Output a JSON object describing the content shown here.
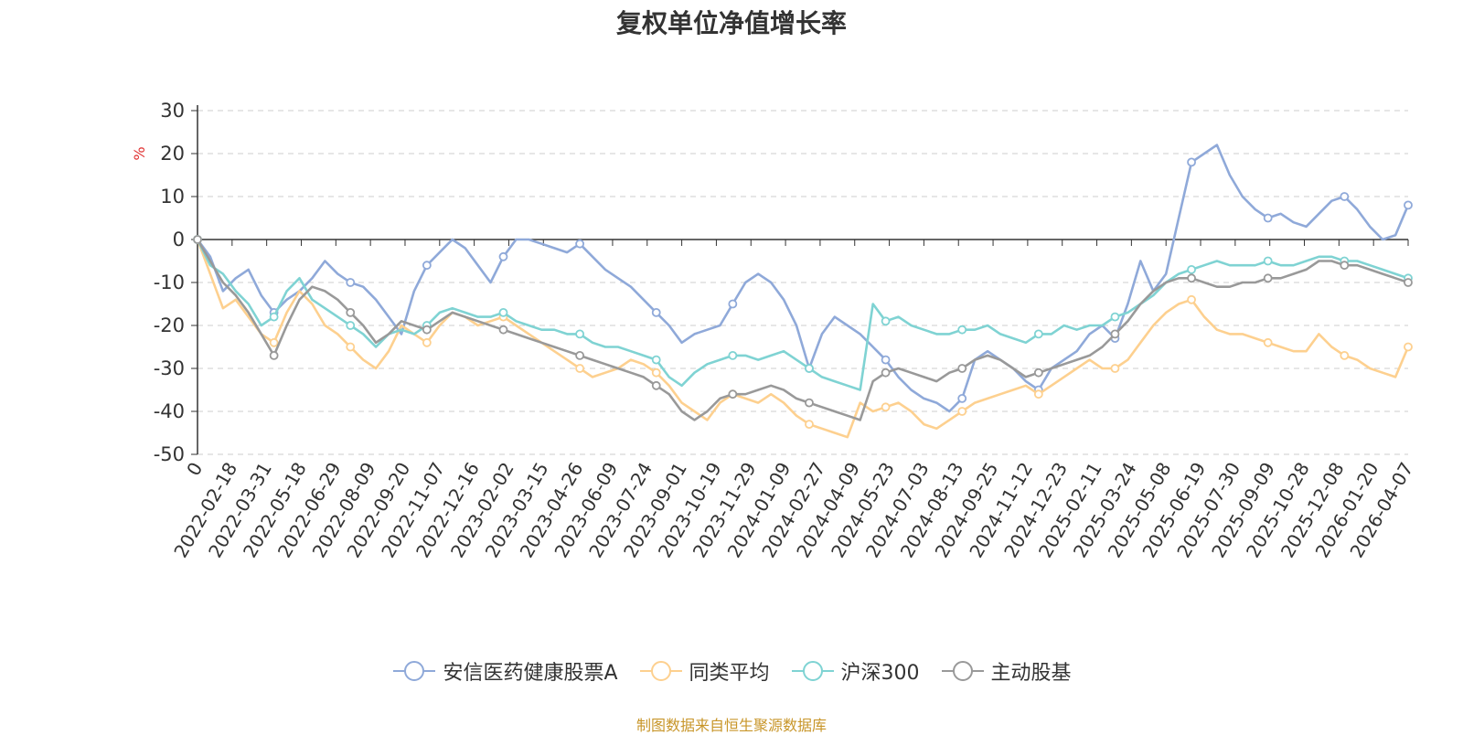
{
  "chart_data": {
    "type": "line",
    "title": "复权单位净值增长率",
    "ylabel": "%",
    "ylim": [
      -50,
      30
    ],
    "yticks": [
      30,
      20,
      10,
      0,
      -10,
      -20,
      -30,
      -40,
      -50
    ],
    "xticks": [
      "0",
      "2022-02-18",
      "2022-03-31",
      "2022-05-18",
      "2022-06-29",
      "2022-08-09",
      "2022-09-20",
      "2022-11-07",
      "2022-12-16",
      "2023-02-02",
      "2023-03-15",
      "2023-04-26",
      "2023-06-09",
      "2023-07-24",
      "2023-09-01",
      "2023-10-19",
      "2023-11-29",
      "2024-01-09",
      "2024-02-27",
      "2024-04-09",
      "2024-05-23",
      "2024-07-03",
      "2024-08-13",
      "2024-09-25",
      "2024-11-12",
      "2024-12-23",
      "2025-02-11",
      "2025-03-24",
      "2025-05-08",
      "2025-06-19",
      "2025-07-30",
      "2025-09-09",
      "2025-10-28",
      "2025-12-08",
      "2026-01-20",
      "2026-04-07"
    ],
    "legend_position": "bottom",
    "grid": true,
    "series": [
      {
        "name": "安信医药健康股票A",
        "color": "#8fa9d9",
        "values": [
          0,
          -4,
          -12,
          -9,
          -7,
          -13,
          -17,
          -14,
          -12,
          -9,
          -5,
          -8,
          -10,
          -11,
          -14,
          -18,
          -22,
          -12,
          -6,
          -3,
          0,
          -2,
          -6,
          -10,
          -4,
          0,
          0,
          -1,
          -2,
          -3,
          -1,
          -4,
          -7,
          -9,
          -11,
          -14,
          -17,
          -20,
          -24,
          -22,
          -21,
          -20,
          -15,
          -10,
          -8,
          -10,
          -14,
          -20,
          -30,
          -22,
          -18,
          -20,
          -22,
          -25,
          -28,
          -32,
          -35,
          -37,
          -38,
          -40,
          -37,
          -28,
          -26,
          -28,
          -30,
          -33,
          -35,
          -30,
          -28,
          -26,
          -22,
          -20,
          -23,
          -15,
          -5,
          -12,
          -8,
          5,
          18,
          20,
          22,
          15,
          10,
          7,
          5,
          6,
          4,
          3,
          6,
          9,
          10,
          7,
          3,
          0,
          1,
          8
        ]
      },
      {
        "name": "同类平均",
        "color": "#fdd08f",
        "values": [
          0,
          -8,
          -16,
          -14,
          -18,
          -22,
          -24,
          -17,
          -12,
          -15,
          -20,
          -22,
          -25,
          -28,
          -30,
          -26,
          -20,
          -22,
          -24,
          -20,
          -17,
          -18,
          -20,
          -19,
          -18,
          -20,
          -22,
          -24,
          -26,
          -28,
          -30,
          -32,
          -31,
          -30,
          -28,
          -29,
          -31,
          -34,
          -38,
          -40,
          -42,
          -38,
          -36,
          -37,
          -38,
          -36,
          -38,
          -41,
          -43,
          -44,
          -45,
          -46,
          -38,
          -40,
          -39,
          -38,
          -40,
          -43,
          -44,
          -42,
          -40,
          -38,
          -37,
          -36,
          -35,
          -34,
          -36,
          -34,
          -32,
          -30,
          -28,
          -30,
          -30,
          -28,
          -24,
          -20,
          -17,
          -15,
          -14,
          -18,
          -21,
          -22,
          -22,
          -23,
          -24,
          -25,
          -26,
          -26,
          -22,
          -25,
          -27,
          -28,
          -30,
          -31,
          -32,
          -25
        ]
      },
      {
        "name": "沪深300",
        "color": "#7fd3d3",
        "values": [
          0,
          -6,
          -8,
          -12,
          -15,
          -20,
          -18,
          -12,
          -9,
          -14,
          -16,
          -18,
          -20,
          -22,
          -25,
          -22,
          -21,
          -22,
          -20,
          -17,
          -16,
          -17,
          -18,
          -18,
          -17,
          -19,
          -20,
          -21,
          -21,
          -22,
          -22,
          -24,
          -25,
          -25,
          -26,
          -27,
          -28,
          -32,
          -34,
          -31,
          -29,
          -28,
          -27,
          -27,
          -28,
          -27,
          -26,
          -28,
          -30,
          -32,
          -33,
          -34,
          -35,
          -15,
          -19,
          -18,
          -20,
          -21,
          -22,
          -22,
          -21,
          -21,
          -20,
          -22,
          -23,
          -24,
          -22,
          -22,
          -20,
          -21,
          -20,
          -20,
          -18,
          -17,
          -15,
          -13,
          -10,
          -8,
          -7,
          -6,
          -5,
          -6,
          -6,
          -6,
          -5,
          -6,
          -6,
          -5,
          -4,
          -4,
          -5,
          -5,
          -6,
          -7,
          -8,
          -9
        ]
      },
      {
        "name": "主动股基",
        "color": "#999999",
        "values": [
          0,
          -5,
          -10,
          -13,
          -17,
          -22,
          -27,
          -20,
          -14,
          -11,
          -12,
          -14,
          -17,
          -20,
          -24,
          -22,
          -19,
          -20,
          -21,
          -19,
          -17,
          -18,
          -19,
          -20,
          -21,
          -22,
          -23,
          -24,
          -25,
          -26,
          -27,
          -28,
          -29,
          -30,
          -31,
          -32,
          -34,
          -36,
          -40,
          -42,
          -40,
          -37,
          -36,
          -36,
          -35,
          -34,
          -35,
          -37,
          -38,
          -39,
          -40,
          -41,
          -42,
          -33,
          -31,
          -30,
          -31,
          -32,
          -33,
          -31,
          -30,
          -28,
          -27,
          -28,
          -30,
          -32,
          -31,
          -30,
          -29,
          -28,
          -27,
          -25,
          -22,
          -19,
          -15,
          -12,
          -10,
          -9,
          -9,
          -10,
          -11,
          -11,
          -10,
          -10,
          -9,
          -9,
          -8,
          -7,
          -5,
          -5,
          -6,
          -6,
          -7,
          -8,
          -9,
          -10
        ]
      }
    ]
  },
  "source_text": "制图数据来自恒生聚源数据库"
}
